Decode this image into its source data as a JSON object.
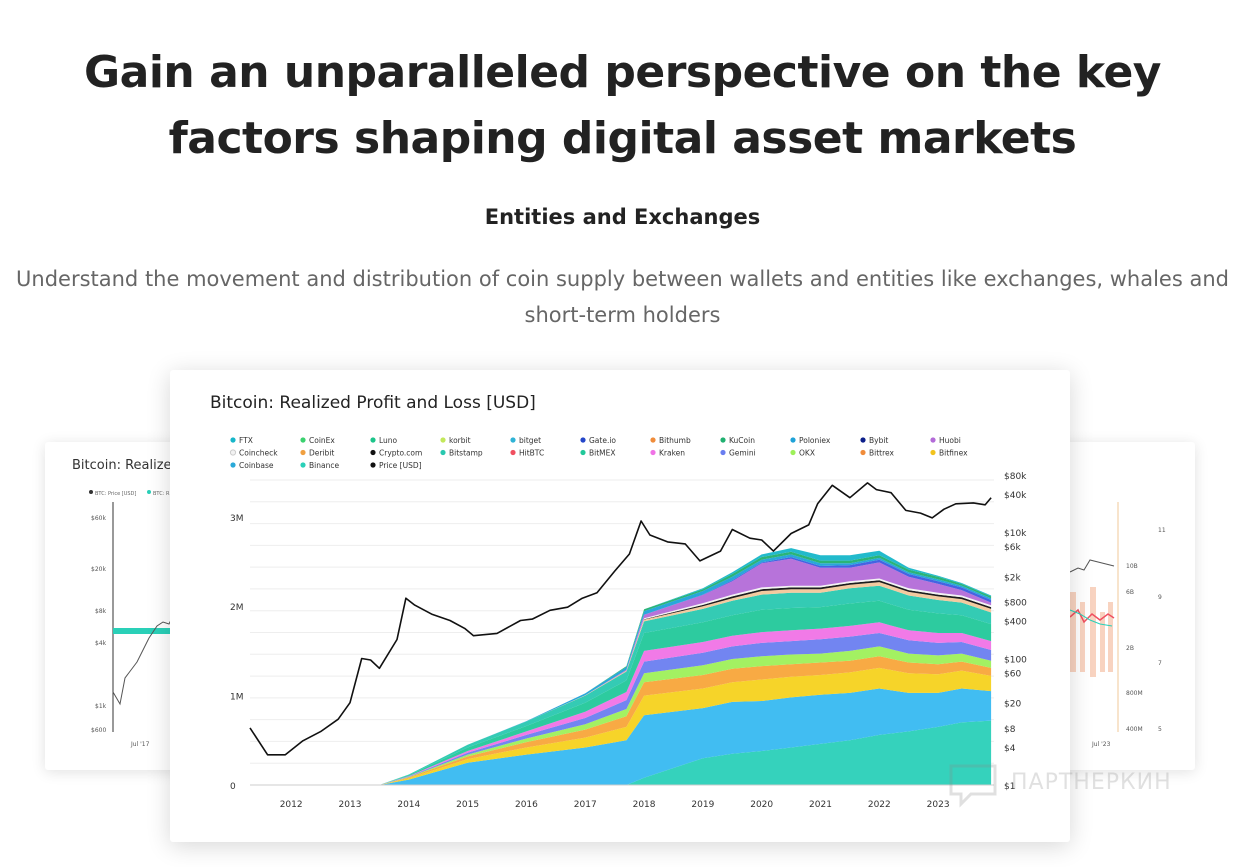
{
  "headline": "Gain an unparalleled perspective on the key factors shaping digital asset markets",
  "section_title": "Entities and Exchanges",
  "description": "Understand the movement and distribution of coin supply between wallets and entities like exchanges, whales and short-term holders",
  "left_card": {
    "title": "Bitcoin: Realized",
    "legend": [
      "BTC: Price [USD]",
      "BTC: R"
    ],
    "y_ticks": [
      "$60k",
      "$20k",
      "$8k",
      "$4k",
      "$1k",
      "$600"
    ],
    "x_tick": "Jul '17"
  },
  "right_card": {
    "ticks_a": [
      "10B",
      "6B",
      "2B",
      "800M",
      "400M"
    ],
    "ticks_b": [
      "11",
      "9",
      "7",
      "5"
    ],
    "x_tick": "Jul '23"
  },
  "watermark": "ПАРТНЕРКИН",
  "chart_data": {
    "type": "area",
    "title": "Bitcoin: Realized Profit and Loss [USD]",
    "x_ticks": [
      "2012",
      "2013",
      "2014",
      "2015",
      "2016",
      "2017",
      "2018",
      "2019",
      "2020",
      "2021",
      "2022",
      "2023"
    ],
    "y_left_ticks": [
      "0",
      "1M",
      "2M",
      "3M"
    ],
    "y_left_range": [
      0,
      3300000
    ],
    "y_right_ticks": [
      "$80k",
      "$40k",
      "$10k",
      "$6k",
      "$2k",
      "$800",
      "$400",
      "$100",
      "$60",
      "$20",
      "$8",
      "$4",
      "$1"
    ],
    "legend": [
      {
        "name": "FTX",
        "color": "#16b6c9"
      },
      {
        "name": "CoinEx",
        "color": "#3bd16f"
      },
      {
        "name": "Luno",
        "color": "#1cc48a"
      },
      {
        "name": "korbit",
        "color": "#c3e85b"
      },
      {
        "name": "bitget",
        "color": "#2fb3d6"
      },
      {
        "name": "Gate.io",
        "color": "#2446c9"
      },
      {
        "name": "Bithumb",
        "color": "#f08c3a"
      },
      {
        "name": "KuCoin",
        "color": "#20b070"
      },
      {
        "name": "Poloniex",
        "color": "#1ea2d8"
      },
      {
        "name": "Bybit",
        "color": "#0c1f8a"
      },
      {
        "name": "Huobi",
        "color": "#b36bd8"
      },
      {
        "name": "Coincheck",
        "color": "#f2f2f2"
      },
      {
        "name": "Deribit",
        "color": "#f0a040"
      },
      {
        "name": "Crypto.com",
        "color": "#111111"
      },
      {
        "name": "Bitstamp",
        "color": "#29c8b0"
      },
      {
        "name": "HitBTC",
        "color": "#f05060"
      },
      {
        "name": "BitMEX",
        "color": "#22c89a"
      },
      {
        "name": "Kraken",
        "color": "#f073e6"
      },
      {
        "name": "Gemini",
        "color": "#6a7ef0"
      },
      {
        "name": "OKX",
        "color": "#9ef05a"
      },
      {
        "name": "Bittrex",
        "color": "#f08c3a"
      },
      {
        "name": "Bitfinex",
        "color": "#f2c31e"
      },
      {
        "name": "Coinbase",
        "color": "#2aa9d8"
      },
      {
        "name": "Binance",
        "color": "#2ad0b8"
      },
      {
        "name": "Price [USD]",
        "color": "#111111"
      }
    ],
    "stacks_years": [
      2011.5,
      2013.5,
      2014.0,
      2015.0,
      2016.0,
      2017.0,
      2017.7,
      2018.0,
      2019.0,
      2019.5,
      2020.0,
      2020.5,
      2021.0,
      2021.5,
      2022.0,
      2022.5,
      2023.0,
      2023.4,
      2023.9
    ],
    "series": [
      {
        "name": "Binance",
        "color": "#2ad0b8",
        "values": [
          0,
          0,
          0,
          0,
          0,
          0,
          0,
          80000,
          300000,
          350000,
          380000,
          420000,
          460000,
          500000,
          560000,
          600000,
          650000,
          700000,
          720000
        ]
      },
      {
        "name": "Coinbase",
        "color": "#37b9f1",
        "values": [
          0,
          0,
          60000,
          250000,
          340000,
          420000,
          500000,
          700000,
          560000,
          580000,
          560000,
          560000,
          550000,
          530000,
          520000,
          430000,
          380000,
          380000,
          330000
        ]
      },
      {
        "name": "Bitfinex",
        "color": "#f6d21e",
        "values": [
          0,
          0,
          15000,
          40000,
          80000,
          110000,
          150000,
          220000,
          220000,
          220000,
          240000,
          230000,
          220000,
          230000,
          230000,
          220000,
          210000,
          200000,
          170000
        ]
      },
      {
        "name": "Bittrex",
        "color": "#f8a53a",
        "values": [
          0,
          0,
          10000,
          30000,
          60000,
          90000,
          120000,
          150000,
          150000,
          150000,
          150000,
          140000,
          140000,
          130000,
          130000,
          120000,
          110000,
          100000,
          90000
        ]
      },
      {
        "name": "OKX",
        "color": "#9ef05a",
        "values": [
          0,
          0,
          5000,
          20000,
          40000,
          60000,
          80000,
          100000,
          110000,
          110000,
          110000,
          110000,
          100000,
          110000,
          110000,
          100000,
          100000,
          90000,
          80000
        ]
      },
      {
        "name": "Gemini",
        "color": "#6a7ef0",
        "values": [
          0,
          0,
          5000,
          20000,
          40000,
          70000,
          100000,
          130000,
          140000,
          140000,
          150000,
          150000,
          160000,
          160000,
          150000,
          150000,
          140000,
          130000,
          120000
        ]
      },
      {
        "name": "Kraken",
        "color": "#f073e6",
        "values": [
          0,
          0,
          5000,
          20000,
          40000,
          70000,
          90000,
          120000,
          120000,
          120000,
          120000,
          120000,
          120000,
          120000,
          120000,
          110000,
          110000,
          100000,
          100000
        ]
      },
      {
        "name": "BitMEX",
        "color": "#22c89a",
        "values": [
          0,
          0,
          10000,
          40000,
          60000,
          100000,
          130000,
          200000,
          220000,
          230000,
          250000,
          250000,
          240000,
          250000,
          240000,
          230000,
          220000,
          200000,
          190000
        ]
      },
      {
        "name": "Bitstamp",
        "color": "#29c8b0",
        "values": [
          0,
          0,
          8000,
          30000,
          50000,
          80000,
          100000,
          130000,
          150000,
          160000,
          170000,
          170000,
          160000,
          170000,
          170000,
          160000,
          150000,
          140000,
          130000
        ]
      },
      {
        "name": "Deribit",
        "color": "#f2c79a",
        "values": [
          0,
          0,
          0,
          0,
          0,
          5000,
          10000,
          20000,
          30000,
          30000,
          40000,
          40000,
          40000,
          40000,
          40000,
          40000,
          40000,
          40000,
          40000
        ]
      },
      {
        "name": "Crypto.com",
        "color": "#111111",
        "values": [
          0,
          0,
          0,
          0,
          0,
          0,
          0,
          5000,
          15000,
          20000,
          20000,
          20000,
          20000,
          20000,
          20000,
          20000,
          20000,
          20000,
          20000
        ]
      },
      {
        "name": "Coincheck",
        "color": "#f2f2f2",
        "values": [
          0,
          0,
          0,
          0,
          0,
          0,
          0,
          10000,
          20000,
          20000,
          20000,
          20000,
          20000,
          20000,
          20000,
          20000,
          20000,
          20000,
          20000
        ]
      },
      {
        "name": "Huobi",
        "color": "#b36bd8",
        "values": [
          0,
          0,
          0,
          0,
          0,
          0,
          10000,
          40000,
          90000,
          150000,
          270000,
          300000,
          200000,
          150000,
          180000,
          130000,
          100000,
          60000,
          30000
        ]
      },
      {
        "name": "Bybit",
        "color": "#3b5be0",
        "values": [
          0,
          0,
          0,
          0,
          0,
          0,
          0,
          0,
          5000,
          10000,
          10000,
          20000,
          20000,
          30000,
          30000,
          30000,
          30000,
          30000,
          30000
        ]
      },
      {
        "name": "Poloniex",
        "color": "#1ea2d8",
        "values": [
          0,
          0,
          0,
          0,
          5000,
          20000,
          30000,
          40000,
          40000,
          40000,
          30000,
          30000,
          30000,
          20000,
          20000,
          20000,
          20000,
          20000,
          20000
        ]
      },
      {
        "name": "KuCoin",
        "color": "#20b070",
        "values": [
          0,
          0,
          0,
          0,
          0,
          0,
          10000,
          20000,
          20000,
          30000,
          30000,
          30000,
          30000,
          30000,
          30000,
          30000,
          30000,
          20000,
          20000
        ]
      },
      {
        "name": "FTX",
        "color": "#16b6c9",
        "values": [
          0,
          0,
          0,
          0,
          0,
          0,
          0,
          0,
          10000,
          20000,
          30000,
          40000,
          60000,
          60000,
          50000,
          20000,
          10000,
          10000,
          10000
        ]
      }
    ],
    "price_line": {
      "name": "Price [USD]",
      "color": "#111111",
      "points": [
        [
          2011.3,
          8
        ],
        [
          2011.6,
          3
        ],
        [
          2011.9,
          3
        ],
        [
          2012.2,
          5
        ],
        [
          2012.5,
          7
        ],
        [
          2012.8,
          11
        ],
        [
          2013.0,
          20
        ],
        [
          2013.2,
          100
        ],
        [
          2013.35,
          95
        ],
        [
          2013.5,
          70
        ],
        [
          2013.8,
          200
        ],
        [
          2013.95,
          900
        ],
        [
          2014.1,
          700
        ],
        [
          2014.4,
          500
        ],
        [
          2014.7,
          400
        ],
        [
          2014.95,
          300
        ],
        [
          2015.1,
          230
        ],
        [
          2015.5,
          250
        ],
        [
          2015.9,
          400
        ],
        [
          2016.1,
          420
        ],
        [
          2016.4,
          580
        ],
        [
          2016.7,
          650
        ],
        [
          2016.95,
          900
        ],
        [
          2017.2,
          1100
        ],
        [
          2017.5,
          2400
        ],
        [
          2017.75,
          4500
        ],
        [
          2017.95,
          15000
        ],
        [
          2018.1,
          9000
        ],
        [
          2018.4,
          7000
        ],
        [
          2018.7,
          6500
        ],
        [
          2018.95,
          3500
        ],
        [
          2019.3,
          5000
        ],
        [
          2019.5,
          11000
        ],
        [
          2019.8,
          8000
        ],
        [
          2020.0,
          7500
        ],
        [
          2020.2,
          5000
        ],
        [
          2020.5,
          9500
        ],
        [
          2020.8,
          13000
        ],
        [
          2020.95,
          28000
        ],
        [
          2021.2,
          55000
        ],
        [
          2021.5,
          35000
        ],
        [
          2021.8,
          60000
        ],
        [
          2021.95,
          47000
        ],
        [
          2022.2,
          42000
        ],
        [
          2022.45,
          22000
        ],
        [
          2022.7,
          20000
        ],
        [
          2022.9,
          16800
        ],
        [
          2023.1,
          23000
        ],
        [
          2023.3,
          28000
        ],
        [
          2023.6,
          29000
        ],
        [
          2023.8,
          27000
        ],
        [
          2023.9,
          35000
        ]
      ]
    }
  }
}
